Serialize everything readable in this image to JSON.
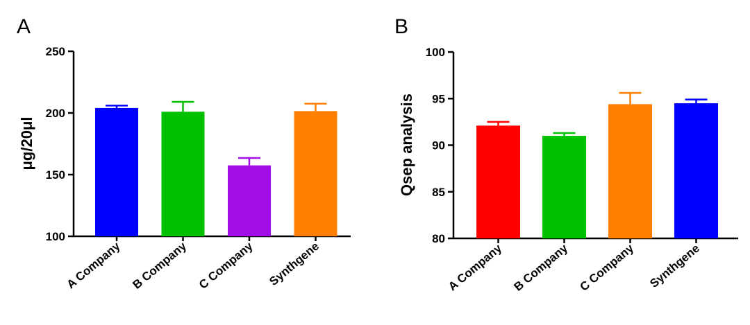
{
  "chart_data": [
    {
      "type": "bar",
      "panel_label": "A",
      "categories": [
        "A Company",
        "B Company",
        "C Company",
        "Synthgene"
      ],
      "values": [
        204,
        201,
        157.5,
        201.5
      ],
      "errors": [
        2,
        8,
        6,
        6
      ],
      "colors": [
        "#0000ff",
        "#00c000",
        "#a10de6",
        "#ff8000"
      ],
      "ylabel": "μg/20μl",
      "ylim": [
        100,
        250
      ],
      "yticks": [
        "100",
        "150",
        "200",
        "250"
      ],
      "grid": false
    },
    {
      "type": "bar",
      "panel_label": "B",
      "categories": [
        "A Company",
        "B Company",
        "C Company",
        "Synthgene"
      ],
      "values": [
        92.1,
        91.0,
        94.4,
        94.5
      ],
      "errors": [
        0.4,
        0.3,
        1.2,
        0.4
      ],
      "colors": [
        "#ff0000",
        "#00c000",
        "#ff8000",
        "#0000ff"
      ],
      "ylabel": "Qsep analysis",
      "ylim": [
        80,
        100
      ],
      "yticks": [
        "80",
        "85",
        "90",
        "95",
        "100"
      ],
      "grid": false
    }
  ]
}
